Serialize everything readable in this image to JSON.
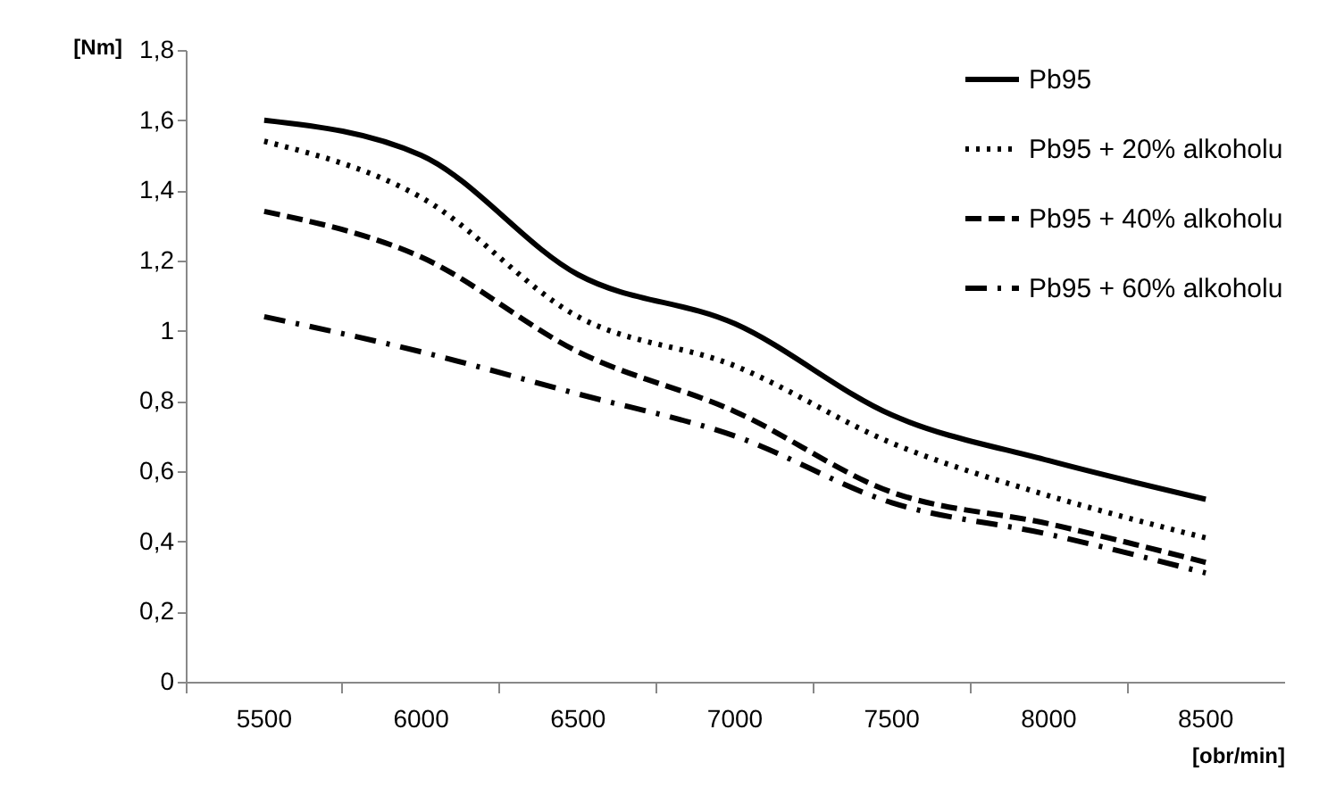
{
  "chart_data": {
    "type": "line",
    "xlabel": "[obr/min]",
    "ylabel": "[Nm]",
    "categories": [
      "5500",
      "6000",
      "6500",
      "7000",
      "7500",
      "8000",
      "8500"
    ],
    "ylim": [
      0,
      1.8
    ],
    "yticks": [
      0,
      {
        "value": 0.2,
        "label": "0,2"
      },
      {
        "value": 0.4,
        "label": "0,4"
      },
      {
        "value": 0.6,
        "label": "0,6"
      },
      {
        "value": 0.8,
        "label": "0,8"
      },
      1,
      {
        "value": 1.2,
        "label": "1,2"
      },
      {
        "value": 1.4,
        "label": "1,4"
      },
      {
        "value": 1.6,
        "label": "1,6"
      },
      {
        "value": 1.8,
        "label": "1,8"
      }
    ],
    "grid": false,
    "legend": "top right",
    "marker": "none",
    "series": [
      {
        "name": "Pb95",
        "color": "#000000",
        "line_style": "solid",
        "values": [
          1.6,
          1.5,
          1.16,
          1.02,
          0.76,
          0.63,
          0.52
        ]
      },
      {
        "name": "Pb95 + 20% alkoholu",
        "color": "#000000",
        "line_style": "dotted",
        "values": [
          1.54,
          1.38,
          1.04,
          0.9,
          0.68,
          0.53,
          0.41
        ]
      },
      {
        "name": "Pb95 + 40% alkoholu",
        "color": "#000000",
        "line_style": "dashed",
        "values": [
          1.34,
          1.21,
          0.94,
          0.77,
          0.54,
          0.45,
          0.34
        ]
      },
      {
        "name": "Pb95 + 60% alkoholu",
        "color": "#000000",
        "line_style": "dashdot",
        "values": [
          1.04,
          0.94,
          0.82,
          0.7,
          0.51,
          0.42,
          0.31
        ]
      }
    ]
  }
}
